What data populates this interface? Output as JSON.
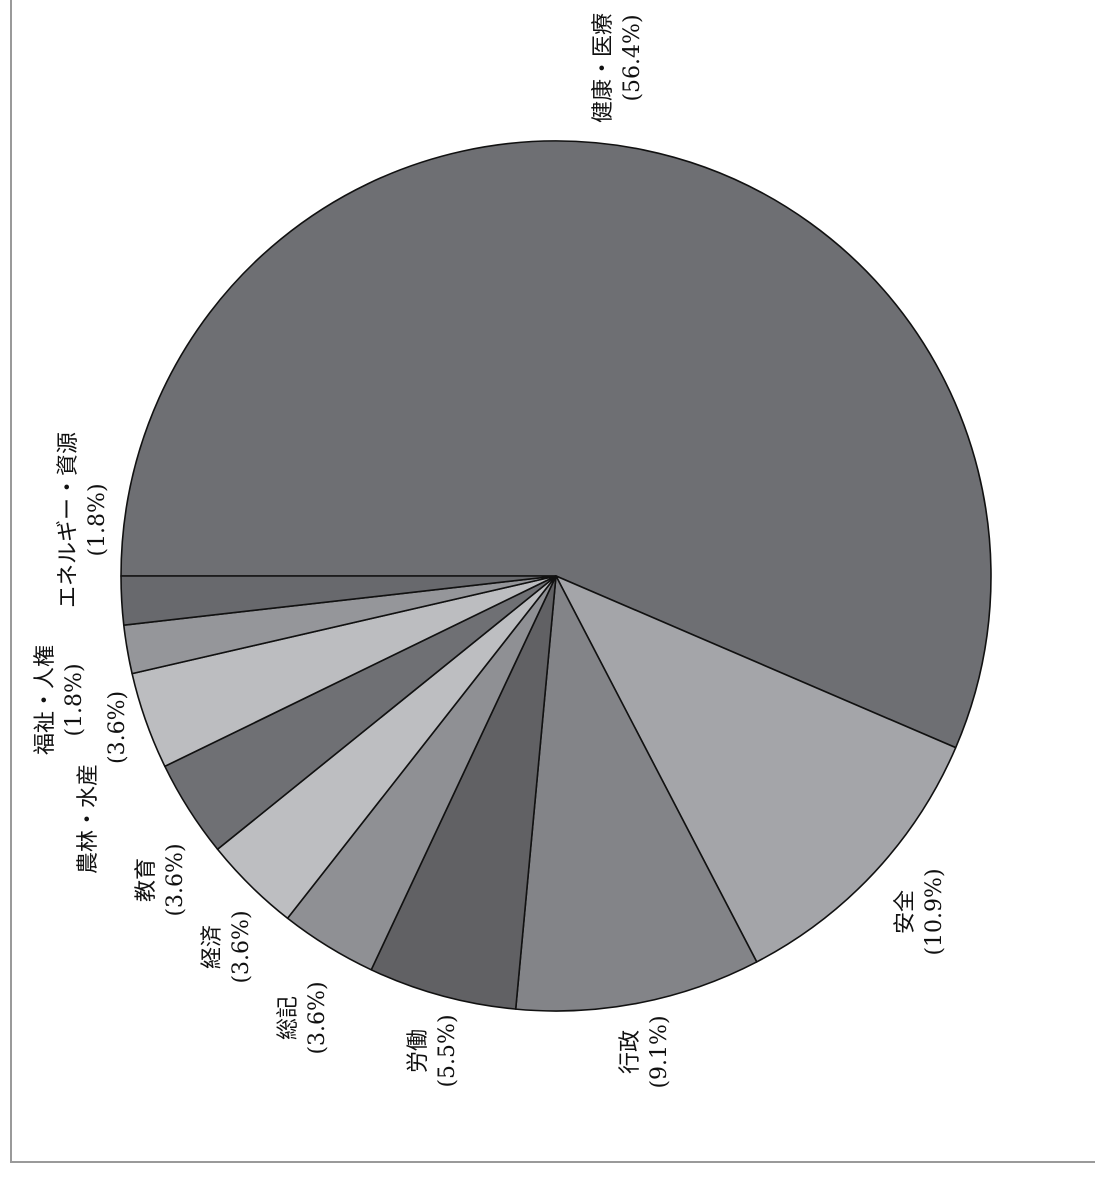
{
  "chart_data": {
    "type": "pie",
    "title": "",
    "slices": [
      {
        "label": "健康・医療",
        "value_label": "(56.4%)",
        "value": 56.4,
        "color": "#6e6f73"
      },
      {
        "label": "安全",
        "value_label": "(10.9%)",
        "value": 10.9,
        "color": "#a4a5a9"
      },
      {
        "label": "行政",
        "value_label": "(9.1%)",
        "value": 9.1,
        "color": "#838488"
      },
      {
        "label": "労働",
        "value_label": "(5.5%)",
        "value": 5.5,
        "color": "#616164"
      },
      {
        "label": "総記",
        "value_label": "(3.6%)",
        "value": 3.6,
        "color": "#8f9094"
      },
      {
        "label": "経済",
        "value_label": "(3.6%)",
        "value": 3.6,
        "color": "#bdbec1"
      },
      {
        "label": "教育",
        "value_label": "(3.6%)",
        "value": 3.6,
        "color": "#6f7074"
      },
      {
        "label": "農林・水産",
        "value_label": "(3.6%)",
        "value": 3.6,
        "color": "#bcbdc0"
      },
      {
        "label": "福祉・人権",
        "value_label": "(1.8%)",
        "value": 1.8,
        "color": "#95969a"
      },
      {
        "label": "エネルギー・資源",
        "value_label": "(1.8%)",
        "value": 1.8,
        "color": "#68696d"
      }
    ],
    "legend": "none",
    "label_orientation": "rotated -90 degrees"
  }
}
